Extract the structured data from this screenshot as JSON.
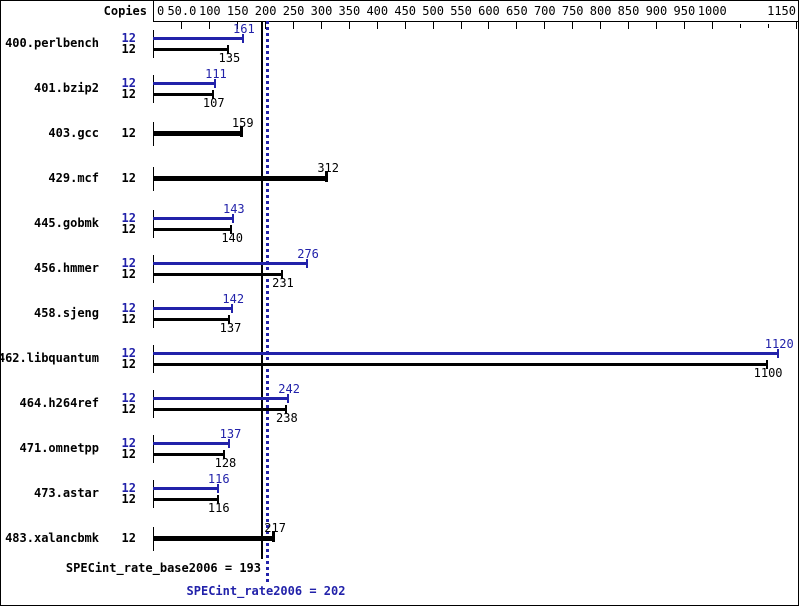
{
  "header": {
    "copies_label": "Copies"
  },
  "colors": {
    "peak_blue": "#2222aa",
    "base_black": "#000000",
    "background": "#ffffff",
    "border": "#000000"
  },
  "chart_data": {
    "type": "bar",
    "orientation": "horizontal",
    "legend_position": "none",
    "grid": false,
    "axis": {
      "min": 0,
      "max": 1150,
      "position": "top",
      "ticks": [
        {
          "v": 0,
          "label": "0",
          "short": false
        },
        {
          "v": 50,
          "label": "50.0",
          "short": false
        },
        {
          "v": 100,
          "label": "100",
          "short": false
        },
        {
          "v": 150,
          "label": "150",
          "short": false
        },
        {
          "v": 200,
          "label": "200",
          "short": false
        },
        {
          "v": 250,
          "label": "250",
          "short": false
        },
        {
          "v": 300,
          "label": "300",
          "short": false
        },
        {
          "v": 350,
          "label": "350",
          "short": false
        },
        {
          "v": 400,
          "label": "400",
          "short": false
        },
        {
          "v": 450,
          "label": "450",
          "short": false
        },
        {
          "v": 500,
          "label": "500",
          "short": false
        },
        {
          "v": 550,
          "label": "550",
          "short": false
        },
        {
          "v": 600,
          "label": "600",
          "short": false
        },
        {
          "v": 650,
          "label": "650",
          "short": false
        },
        {
          "v": 700,
          "label": "700",
          "short": false
        },
        {
          "v": 750,
          "label": "750",
          "short": false
        },
        {
          "v": 800,
          "label": "800",
          "short": false
        },
        {
          "v": 850,
          "label": "850",
          "short": false
        },
        {
          "v": 900,
          "label": "900",
          "short": false
        },
        {
          "v": 950,
          "label": "950",
          "short": false
        },
        {
          "v": 1000,
          "label": "1000",
          "short": false
        },
        {
          "v": 1050,
          "label": "",
          "short": true
        },
        {
          "v": 1100,
          "label": "",
          "short": true
        },
        {
          "v": 1150,
          "label": "1150",
          "short": false
        }
      ]
    },
    "series": [
      {
        "name": "peak",
        "color": "#2222aa"
      },
      {
        "name": "base",
        "color": "#000000"
      }
    ],
    "benchmarks": [
      {
        "name": "400.perlbench",
        "copies": 12,
        "peak": 161,
        "base": 135
      },
      {
        "name": "401.bzip2",
        "copies": 12,
        "peak": 111,
        "base": 107
      },
      {
        "name": "403.gcc",
        "copies": 12,
        "peak": null,
        "base": 159
      },
      {
        "name": "429.mcf",
        "copies": 12,
        "peak": null,
        "base": 312
      },
      {
        "name": "445.gobmk",
        "copies": 12,
        "peak": 143,
        "base": 140
      },
      {
        "name": "456.hmmer",
        "copies": 12,
        "peak": 276,
        "base": 231
      },
      {
        "name": "458.sjeng",
        "copies": 12,
        "peak": 142,
        "base": 137
      },
      {
        "name": "462.libquantum",
        "copies": 12,
        "peak": 1120,
        "base": 1100
      },
      {
        "name": "464.h264ref",
        "copies": 12,
        "peak": 242,
        "base": 238
      },
      {
        "name": "471.omnetpp",
        "copies": 12,
        "peak": 137,
        "base": 128
      },
      {
        "name": "473.astar",
        "copies": 12,
        "peak": 116,
        "base": 116
      },
      {
        "name": "483.xalancbmk",
        "copies": 12,
        "peak": null,
        "base": 217
      }
    ],
    "reference_lines": [
      {
        "name": "base",
        "value": 193,
        "style": "solid",
        "color": "#000000"
      },
      {
        "name": "peak",
        "value": 202,
        "style": "dotted",
        "color": "#2222aa"
      }
    ],
    "summary": {
      "base_text": "SPECint_rate_base2006 = 193",
      "peak_text": "SPECint_rate2006 = 202"
    }
  }
}
